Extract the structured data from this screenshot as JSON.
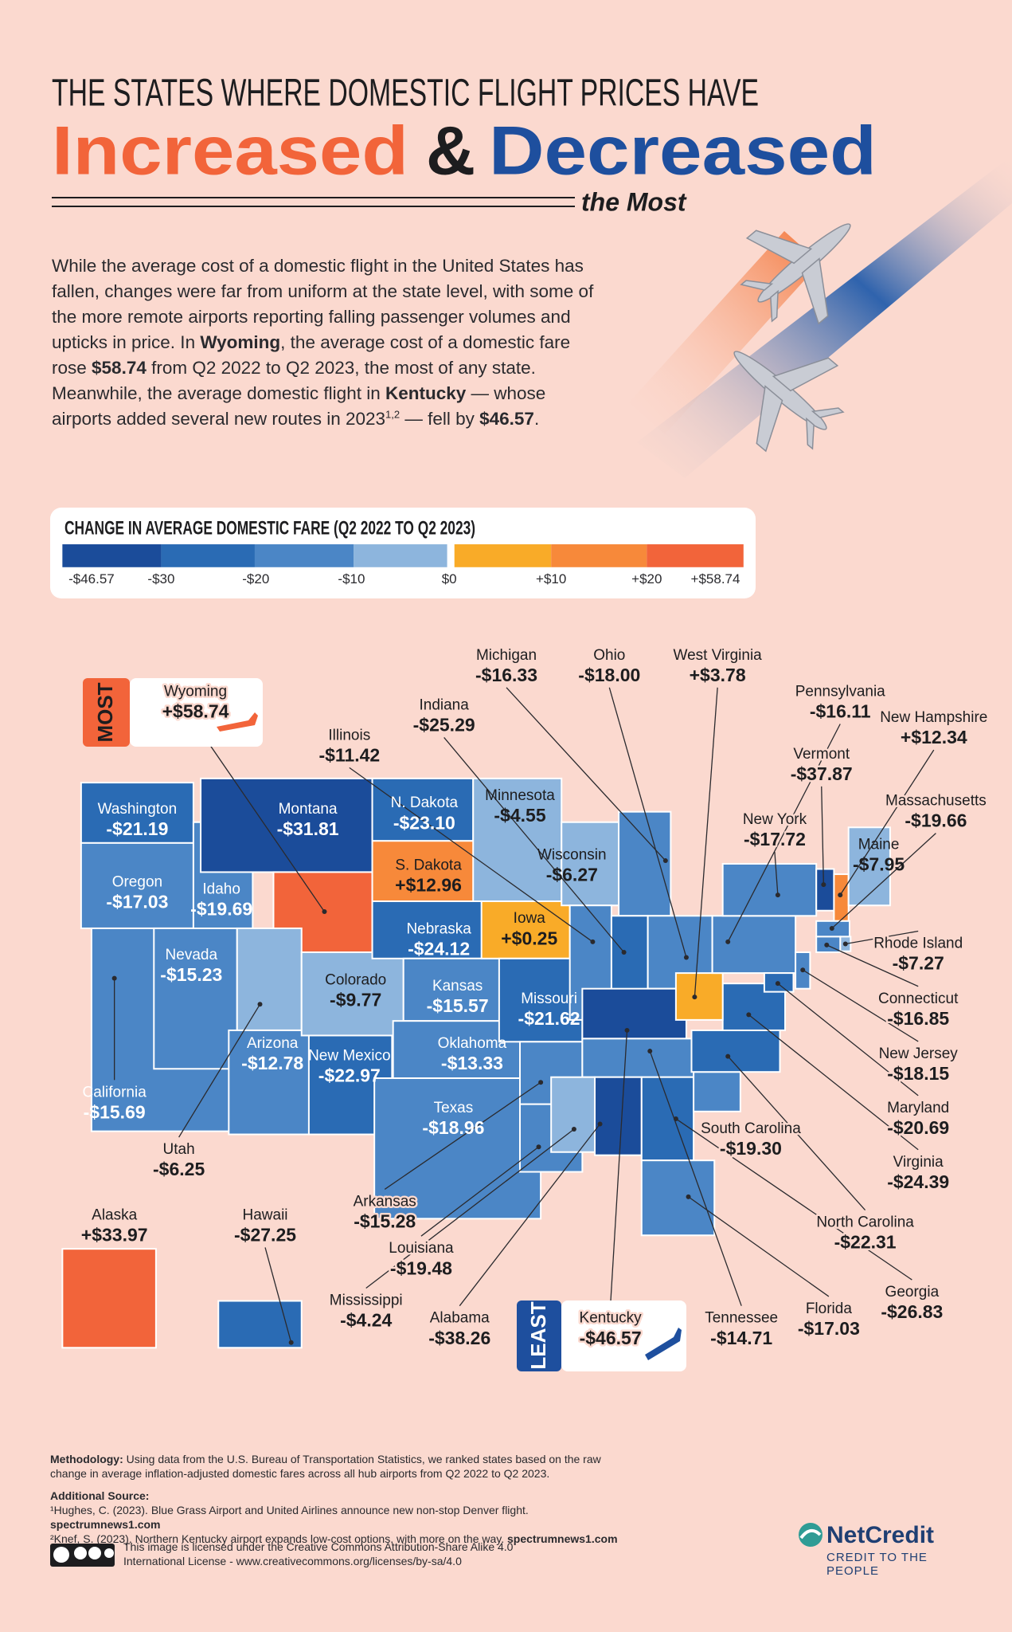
{
  "header": {
    "line1": "THE STATES WHERE DOMESTIC FLIGHT PRICES HAVE",
    "increased": "Increased",
    "amp": "&",
    "decreased": "Decreased",
    "subtitle": "the Most"
  },
  "intro": [
    {
      "text": "While the average cost of a domestic flight in the United States has fallen, changes were far from uniform at the state level, with some of the more remote airports reporting falling passenger volumes and upticks in price. In ",
      "style": "plain"
    },
    {
      "text": "Wyoming",
      "style": "bold"
    },
    {
      "text": ", the average cost of a domestic fare rose ",
      "style": "plain"
    },
    {
      "text": "$58.74",
      "style": "bold"
    },
    {
      "text": " from Q2 2022 to Q2 2023, the most of any state. Meanwhile, the average domestic flight in ",
      "style": "plain"
    },
    {
      "text": "Kentucky",
      "style": "bold"
    },
    {
      "text": " — whose airports added several new routes in 2023",
      "style": "plain"
    },
    {
      "text": "1,2",
      "style": "sup"
    },
    {
      "text": " — fell by ",
      "style": "plain"
    },
    {
      "text": "$46.57",
      "style": "bold"
    },
    {
      "text": ".",
      "style": "plain"
    }
  ],
  "legend": {
    "title": "CHANGE IN AVERAGE DOMESTIC FARE (Q2 2022 TO Q2 2023)",
    "colors": [
      "#1b4c9a",
      "#2a6bb4",
      "#4b86c6",
      "#8db5dd",
      "#f9ab28",
      "#f7893a",
      "#f2643a"
    ],
    "ticks": [
      "-$46.57",
      "-$30",
      "-$20",
      "-$10",
      "$0",
      "+$10",
      "+$20",
      "+$58.74"
    ]
  },
  "callouts": {
    "most": "MOST",
    "least": "LEAST"
  },
  "states": [
    {
      "name": "Washington",
      "change": "-$21.19",
      "color": "#2a6bb4"
    },
    {
      "name": "Oregon",
      "change": "-$17.03",
      "color": "#4b86c6"
    },
    {
      "name": "California",
      "change": "-$15.69",
      "color": "#4b86c6"
    },
    {
      "name": "Nevada",
      "change": "-$15.23",
      "color": "#4b86c6"
    },
    {
      "name": "Idaho",
      "change": "-$19.69",
      "color": "#4b86c6"
    },
    {
      "name": "Montana",
      "change": "-$31.81",
      "color": "#1b4c9a"
    },
    {
      "name": "Wyoming",
      "change": "+$58.74",
      "color": "#f2643a"
    },
    {
      "name": "Utah",
      "change": "-$6.25",
      "color": "#8db5dd"
    },
    {
      "name": "Arizona",
      "change": "-$12.78",
      "color": "#4b86c6"
    },
    {
      "name": "Colorado",
      "change": "-$9.77",
      "color": "#8db5dd"
    },
    {
      "name": "New Mexico",
      "change": "-$22.97",
      "color": "#2a6bb4"
    },
    {
      "name": "N. Dakota",
      "change": "-$23.10",
      "color": "#2a6bb4"
    },
    {
      "name": "S. Dakota",
      "change": "+$12.96",
      "color": "#f7893a"
    },
    {
      "name": "Nebraska",
      "change": "-$24.12",
      "color": "#2a6bb4"
    },
    {
      "name": "Kansas",
      "change": "-$15.57",
      "color": "#4b86c6"
    },
    {
      "name": "Oklahoma",
      "change": "-$13.33",
      "color": "#4b86c6"
    },
    {
      "name": "Texas",
      "change": "-$18.96",
      "color": "#4b86c6"
    },
    {
      "name": "Minnesota",
      "change": "-$4.55",
      "color": "#8db5dd"
    },
    {
      "name": "Iowa",
      "change": "+$0.25",
      "color": "#f9ab28"
    },
    {
      "name": "Missouri",
      "change": "-$21.62",
      "color": "#2a6bb4"
    },
    {
      "name": "Arkansas",
      "change": "-$15.28",
      "color": "#4b86c6"
    },
    {
      "name": "Louisiana",
      "change": "-$19.48",
      "color": "#4b86c6"
    },
    {
      "name": "Wisconsin",
      "change": "-$6.27",
      "color": "#8db5dd"
    },
    {
      "name": "Illinois",
      "change": "-$11.42",
      "color": "#4b86c6"
    },
    {
      "name": "Michigan",
      "change": "-$16.33",
      "color": "#4b86c6"
    },
    {
      "name": "Indiana",
      "change": "-$25.29",
      "color": "#2a6bb4"
    },
    {
      "name": "Ohio",
      "change": "-$18.00",
      "color": "#4b86c6"
    },
    {
      "name": "Kentucky",
      "change": "-$46.57",
      "color": "#1b4c9a"
    },
    {
      "name": "Tennessee",
      "change": "-$14.71",
      "color": "#4b86c6"
    },
    {
      "name": "Mississippi",
      "change": "-$4.24",
      "color": "#8db5dd"
    },
    {
      "name": "Alabama",
      "change": "-$38.26",
      "color": "#1b4c9a"
    },
    {
      "name": "Georgia",
      "change": "-$26.83",
      "color": "#2a6bb4"
    },
    {
      "name": "Florida",
      "change": "-$17.03",
      "color": "#4b86c6"
    },
    {
      "name": "South Carolina",
      "change": "-$19.30",
      "color": "#4b86c6"
    },
    {
      "name": "North Carolina",
      "change": "-$22.31",
      "color": "#2a6bb4"
    },
    {
      "name": "Virginia",
      "change": "-$24.39",
      "color": "#2a6bb4"
    },
    {
      "name": "West Virginia",
      "change": "+$3.78",
      "color": "#f9ab28"
    },
    {
      "name": "Pennsylvania",
      "change": "-$16.11",
      "color": "#4b86c6"
    },
    {
      "name": "New York",
      "change": "-$17.72",
      "color": "#4b86c6"
    },
    {
      "name": "Vermont",
      "change": "-$37.87",
      "color": "#1b4c9a"
    },
    {
      "name": "New Hampshire",
      "change": "+$12.34",
      "color": "#f7893a"
    },
    {
      "name": "Maine",
      "change": "-$7.95",
      "color": "#8db5dd"
    },
    {
      "name": "Massachusetts",
      "change": "-$19.66",
      "color": "#4b86c6"
    },
    {
      "name": "Rhode Island",
      "change": "-$7.27",
      "color": "#8db5dd"
    },
    {
      "name": "Connecticut",
      "change": "-$16.85",
      "color": "#4b86c6"
    },
    {
      "name": "New Jersey",
      "change": "-$18.15",
      "color": "#4b86c6"
    },
    {
      "name": "Maryland",
      "change": "-$20.69",
      "color": "#2a6bb4"
    },
    {
      "name": "Alaska",
      "change": "+$33.97",
      "color": "#f2643a"
    },
    {
      "name": "Hawaii",
      "change": "-$27.25",
      "color": "#2a6bb4"
    }
  ],
  "footer": {
    "methodology": [
      {
        "text": "Methodology:",
        "style": "bold"
      },
      {
        "text": " Using data from the U.S. Bureau of Transportation Statistics, we ranked states based on the raw change in average inflation-adjusted domestic fares across all hub airports from Q2 2022 to Q2 2023.",
        "style": "plain"
      }
    ],
    "sources_title": "Additional Source:",
    "sources": [
      [
        {
          "text": "¹Hughes, C. (2023). Blue Grass Airport and United Airlines announce new non-stop Denver flight. ",
          "style": "plain"
        },
        {
          "text": "spectrumnews1.com",
          "style": "bold"
        }
      ],
      [
        {
          "text": "²Knef, S. (2023). Northern Kentucky airport expands low-cost options, with more on the way. ",
          "style": "plain"
        },
        {
          "text": "spectrumnews1.com",
          "style": "bold"
        }
      ]
    ],
    "license": "This image is licensed under the Creative Commons Attribution-Share Alike 4.0 International License - www.creativecommons.org/licenses/by-sa/4.0"
  },
  "brand": {
    "name": "NetCredit",
    "tagline": "CREDIT TO THE PEOPLE"
  }
}
